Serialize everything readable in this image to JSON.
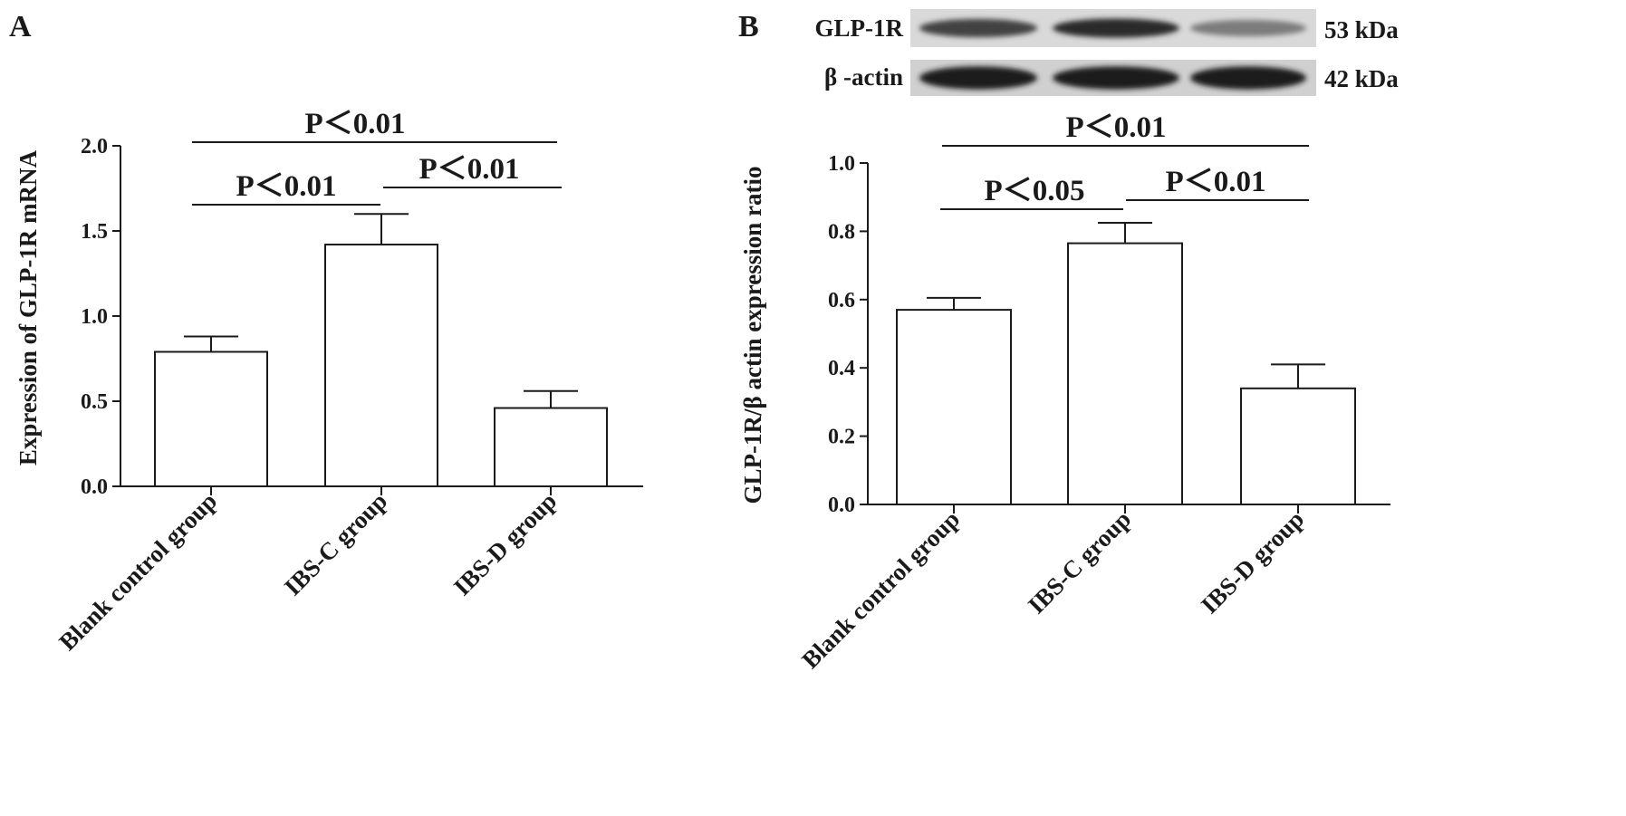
{
  "chart_data": [
    {
      "type": "bar",
      "panel_label": "A",
      "categories": [
        "Blank control group",
        "IBS-C group",
        "IBS-D group"
      ],
      "values": [
        0.79,
        1.42,
        0.46
      ],
      "errors": [
        0.09,
        0.18,
        0.1
      ],
      "ylabel": "Expression of GLP-1R mRNA",
      "xlabel": "",
      "ylim": [
        0,
        2.0
      ],
      "yticks": [
        "0.0",
        "0.5",
        "1.0",
        "1.5",
        "2.0"
      ],
      "ytick_values": [
        0,
        0.5,
        1.0,
        1.5,
        2.0
      ],
      "grid": false,
      "bar_color": "#ffffff",
      "comparisons": [
        {
          "from": 0,
          "to": 1,
          "label": "P＜0.01"
        },
        {
          "from": 1,
          "to": 2,
          "label": "P＜0.01"
        },
        {
          "from": 0,
          "to": 2,
          "label": "P＜0.01"
        }
      ]
    },
    {
      "type": "bar",
      "panel_label": "B",
      "categories": [
        "Blank control group",
        "IBS-C group",
        "IBS-D group"
      ],
      "values": [
        0.57,
        0.765,
        0.34
      ],
      "errors": [
        0.035,
        0.06,
        0.07
      ],
      "ylabel": "GLP-1R/β actin expression ratio",
      "xlabel": "",
      "ylim": [
        0,
        1.0
      ],
      "yticks": [
        "0.0",
        "0.2",
        "0.4",
        "0.6",
        "0.8",
        "1.0"
      ],
      "ytick_values": [
        0,
        0.2,
        0.4,
        0.6,
        0.8,
        1.0
      ],
      "grid": false,
      "bar_color": "#ffffff",
      "comparisons": [
        {
          "from": 0,
          "to": 1,
          "label": "P＜0.05"
        },
        {
          "from": 1,
          "to": 2,
          "label": "P＜0.01"
        },
        {
          "from": 0,
          "to": 2,
          "label": "P＜0.01"
        }
      ],
      "blot": [
        {
          "label": "GLP-1R",
          "size": "53 kDa",
          "band_intensity": [
            0.8,
            0.9,
            0.55
          ]
        },
        {
          "label": "β -actin",
          "size": "42 kDa",
          "band_intensity": [
            0.95,
            0.95,
            0.95
          ]
        }
      ]
    }
  ]
}
